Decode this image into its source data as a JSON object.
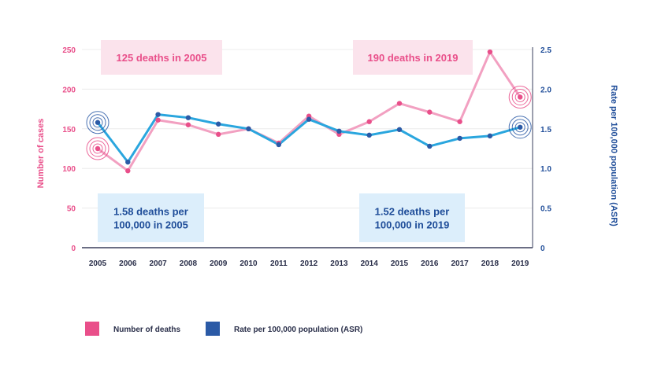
{
  "chart_data": {
    "type": "line",
    "x": [
      "2005",
      "2006",
      "2007",
      "2008",
      "2009",
      "2010",
      "2011",
      "2012",
      "2013",
      "2014",
      "2015",
      "2016",
      "2017",
      "2018",
      "2019"
    ],
    "series": [
      {
        "name": "Number of deaths",
        "axis": "left",
        "color": "#e94f8a",
        "line_color": "#f2a0c1",
        "values": [
          125,
          97,
          161,
          155,
          143,
          150,
          132,
          166,
          143,
          159,
          182,
          171,
          159,
          247,
          190
        ]
      },
      {
        "name": "Rate per 100,000 population (ASR)",
        "axis": "right",
        "color": "#2b5aa6",
        "line_color": "#2aa6de",
        "values": [
          1.58,
          1.08,
          1.68,
          1.64,
          1.56,
          1.5,
          1.3,
          1.62,
          1.47,
          1.42,
          1.49,
          1.28,
          1.38,
          1.41,
          1.52
        ]
      }
    ],
    "left_axis": {
      "label": "Number of cases",
      "ylim": [
        0,
        250
      ],
      "ticks": [
        "0",
        "50",
        "100",
        "150",
        "200",
        "250"
      ],
      "color": "#e94f8a"
    },
    "right_axis": {
      "label": "Rate per 100,000 population (ASR)",
      "ylim": [
        0,
        2.5
      ],
      "ticks": [
        "0",
        "0.5",
        "1.0",
        "1.5",
        "2.0",
        "2.5"
      ],
      "color": "#1f4d99"
    },
    "annotations": [
      {
        "id": "deaths2005",
        "text": [
          "125 deaths in 2005"
        ],
        "color": "#e94f8a",
        "bg": "#fbe3ec"
      },
      {
        "id": "deaths2019",
        "text": [
          "190 deaths in 2019"
        ],
        "color": "#e94f8a",
        "bg": "#fbe3ec"
      },
      {
        "id": "rate2005",
        "text": [
          "1.58 deaths per",
          "100,000 in 2005"
        ],
        "color": "#1f4d99",
        "bg": "#dceefb"
      },
      {
        "id": "rate2019",
        "text": [
          "1.52 deaths per",
          "100,000 in 2019"
        ],
        "color": "#1f4d99",
        "bg": "#dceefb"
      }
    ],
    "legend": [
      {
        "label": "Number of deaths",
        "color": "#e94f8a"
      },
      {
        "label": "Rate per 100,000 population (ASR)",
        "color": "#2b5aa6"
      }
    ],
    "grid": true
  }
}
